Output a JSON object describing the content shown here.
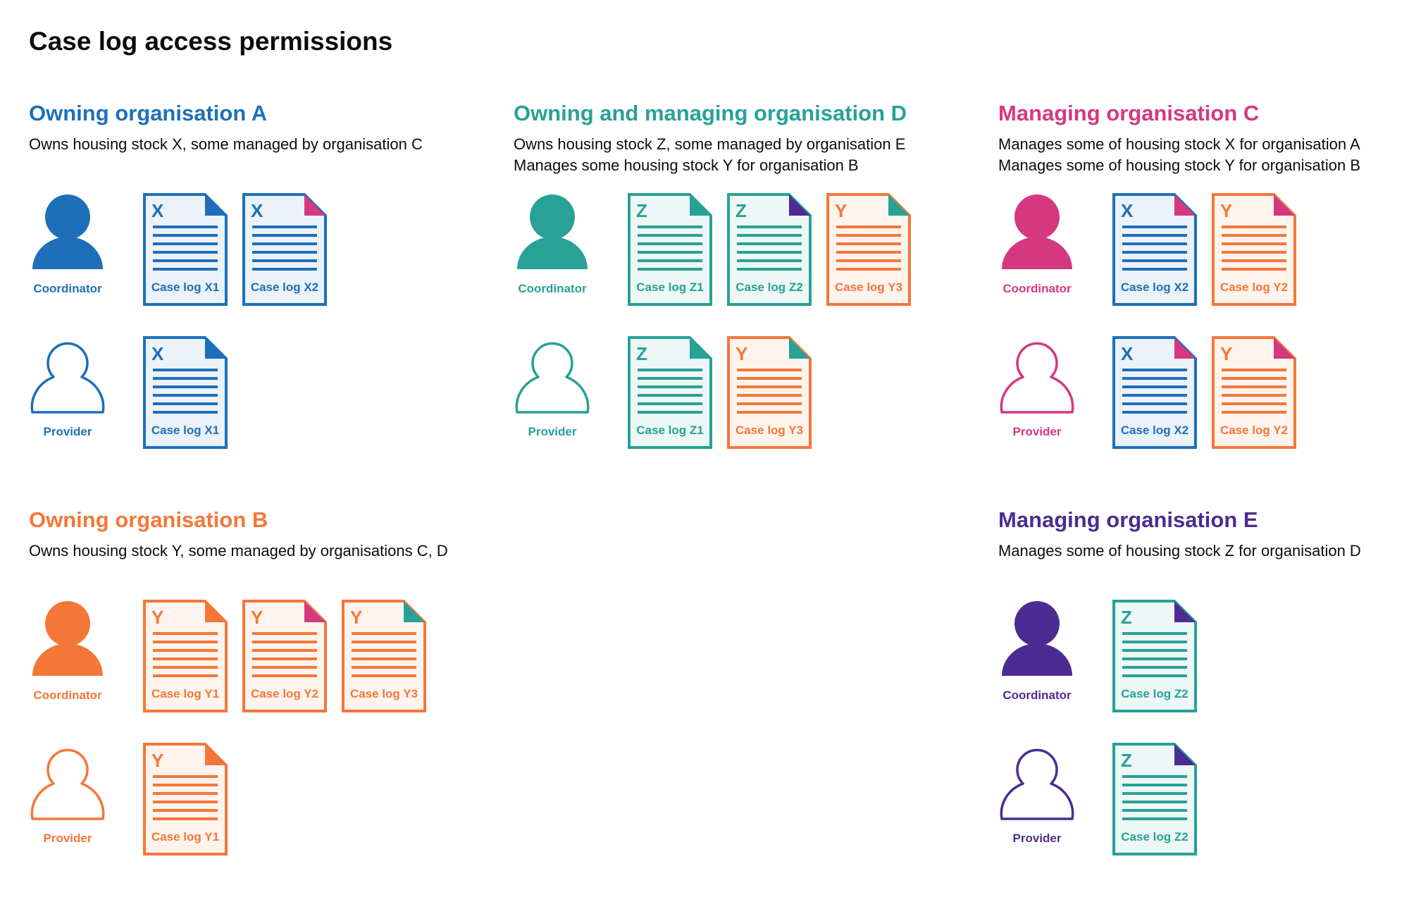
{
  "page_title": "Case log access permissions",
  "colors": {
    "blue": "#1d70b8",
    "teal": "#28a197",
    "pink": "#d53880",
    "orange": "#f47738",
    "purple": "#4c2c92"
  },
  "sections": [
    {
      "title": "Owning organisation A",
      "color": "#1d70b8",
      "desc": [
        "Owns housing stock X, some managed by organisation C"
      ],
      "roles": [
        {
          "label": "Coordinator",
          "filled": true,
          "docs": [
            {
              "letter": "X",
              "label": "Case log X1",
              "color": "#1d70b8",
              "fold": "#1d70b8"
            },
            {
              "letter": "X",
              "label": "Case log X2",
              "color": "#1d70b8",
              "fold": "#d53880"
            }
          ]
        },
        {
          "label": "Provider",
          "filled": false,
          "docs": [
            {
              "letter": "X",
              "label": "Case log X1",
              "color": "#1d70b8",
              "fold": "#1d70b8"
            }
          ]
        }
      ]
    },
    {
      "title": "Owning and managing organisation D",
      "color": "#28a197",
      "desc": [
        "Owns housing stock Z, some managed by organisation E",
        "Manages some housing stock Y for organisation B"
      ],
      "roles": [
        {
          "label": "Coordinator",
          "filled": true,
          "docs": [
            {
              "letter": "Z",
              "label": "Case log Z1",
              "color": "#28a197",
              "fold": "#28a197"
            },
            {
              "letter": "Z",
              "label": "Case log Z2",
              "color": "#28a197",
              "fold": "#4c2c92"
            },
            {
              "letter": "Y",
              "label": "Case log Y3",
              "color": "#f47738",
              "fold": "#28a197"
            }
          ]
        },
        {
          "label": "Provider",
          "filled": false,
          "docs": [
            {
              "letter": "Z",
              "label": "Case log Z1",
              "color": "#28a197",
              "fold": "#28a197"
            },
            {
              "letter": "Y",
              "label": "Case log Y3",
              "color": "#f47738",
              "fold": "#28a197"
            }
          ]
        }
      ]
    },
    {
      "title": "Managing organisation C",
      "color": "#d53880",
      "desc": [
        "Manages some of housing stock X for organisation A",
        "Manages some of housing stock Y for organisation B"
      ],
      "roles": [
        {
          "label": "Coordinator",
          "filled": true,
          "docs": [
            {
              "letter": "X",
              "label": "Case log X2",
              "color": "#1d70b8",
              "fold": "#d53880"
            },
            {
              "letter": "Y",
              "label": "Case log Y2",
              "color": "#f47738",
              "fold": "#d53880"
            }
          ]
        },
        {
          "label": "Provider",
          "filled": false,
          "docs": [
            {
              "letter": "X",
              "label": "Case log X2",
              "color": "#1d70b8",
              "fold": "#d53880"
            },
            {
              "letter": "Y",
              "label": "Case log Y2",
              "color": "#f47738",
              "fold": "#d53880"
            }
          ]
        }
      ]
    },
    {
      "title": "Owning organisation B",
      "color": "#f47738",
      "desc": [
        "Owns housing stock Y, some managed by organisations C, D"
      ],
      "roles": [
        {
          "label": "Coordinator",
          "filled": true,
          "docs": [
            {
              "letter": "Y",
              "label": "Case log Y1",
              "color": "#f47738",
              "fold": "#f47738"
            },
            {
              "letter": "Y",
              "label": "Case log Y2",
              "color": "#f47738",
              "fold": "#d53880"
            },
            {
              "letter": "Y",
              "label": "Case log Y3",
              "color": "#f47738",
              "fold": "#28a197"
            }
          ]
        },
        {
          "label": "Provider",
          "filled": false,
          "docs": [
            {
              "letter": "Y",
              "label": "Case log Y1",
              "color": "#f47738",
              "fold": "#f47738"
            }
          ]
        }
      ]
    },
    {
      "title": "Managing organisation E",
      "color": "#4c2c92",
      "desc": [
        "Manages some of housing stock Z for organisation D"
      ],
      "roles": [
        {
          "label": "Coordinator",
          "filled": true,
          "docs": [
            {
              "letter": "Z",
              "label": "Case log Z2",
              "color": "#28a197",
              "fold": "#4c2c92"
            }
          ]
        },
        {
          "label": "Provider",
          "filled": false,
          "docs": [
            {
              "letter": "Z",
              "label": "Case log Z2",
              "color": "#28a197",
              "fold": "#4c2c92"
            }
          ]
        }
      ]
    }
  ]
}
